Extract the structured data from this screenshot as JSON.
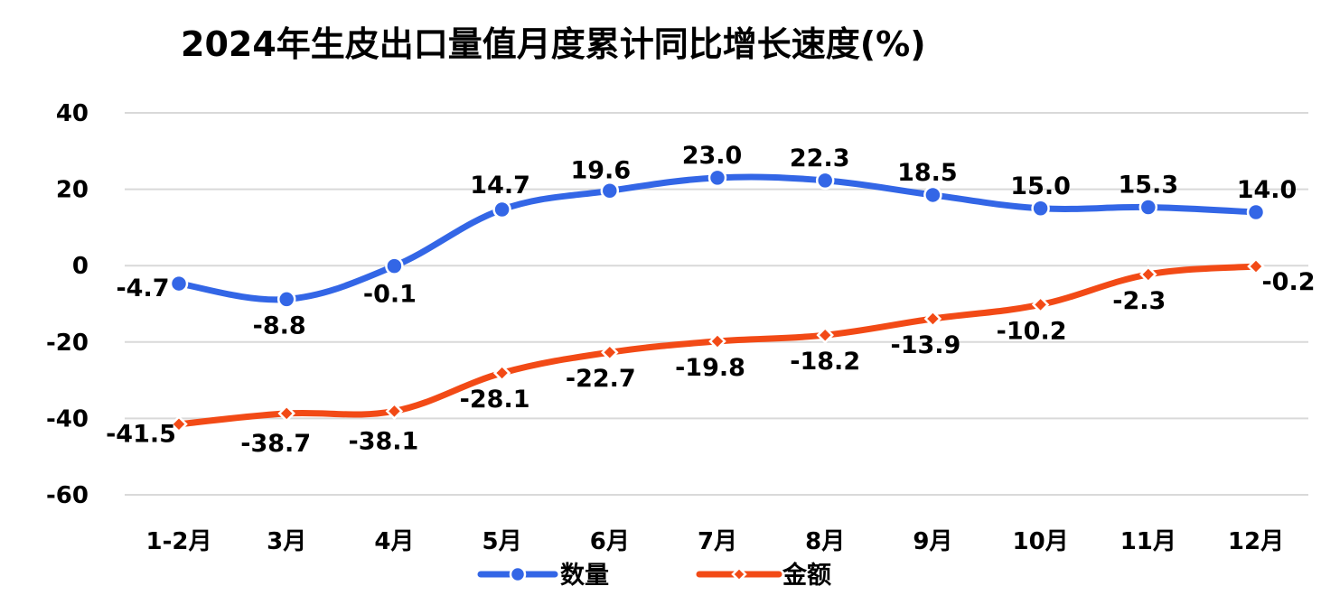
{
  "chart_data": {
    "type": "line",
    "title": "2024年生皮出口量值月度累计同比增长速度(%)",
    "xlabel": "",
    "ylabel": "",
    "categories": [
      "1-2月",
      "3月",
      "4月",
      "5月",
      "6月",
      "7月",
      "8月",
      "9月",
      "10月",
      "11月",
      "12月"
    ],
    "ylim": [
      -60,
      40
    ],
    "yticks": [
      40,
      20,
      0,
      -20,
      -40,
      -60
    ],
    "grid": true,
    "legend_position": "bottom",
    "series": [
      {
        "name": "数量",
        "color": "#3366E6",
        "marker": "circle",
        "values": [
          -4.7,
          -8.8,
          -0.1,
          14.7,
          19.6,
          23.0,
          22.3,
          18.5,
          15.0,
          15.3,
          14.0
        ],
        "labels": [
          "-4.7",
          "-8.8",
          "-0.1",
          "14.7",
          "19.6",
          "23.0",
          "22.3",
          "18.5",
          "15.0",
          "15.3",
          "14.0"
        ]
      },
      {
        "name": "金额",
        "color": "#F24A16",
        "marker": "diamond",
        "values": [
          -41.5,
          -38.7,
          -38.1,
          -28.1,
          -22.7,
          -19.8,
          -18.2,
          -13.9,
          -10.2,
          -2.3,
          -0.2
        ],
        "labels": [
          "-41.5",
          "-38.7",
          "-38.1",
          "-28.1",
          "-22.7",
          "-19.8",
          "-18.2",
          "-13.9",
          "-10.2",
          "-2.3",
          "-0.2"
        ]
      }
    ]
  }
}
